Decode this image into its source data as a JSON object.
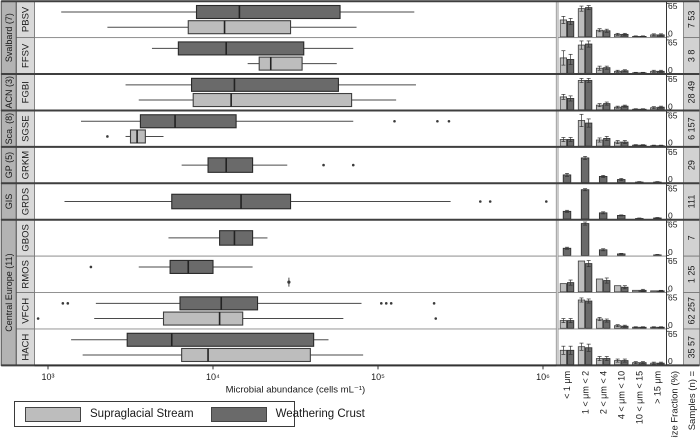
{
  "legend": {
    "items": [
      {
        "label": "Supraglacial Stream",
        "color": "#bdbdbd"
      },
      {
        "label": "Weathering Crust",
        "color": "#6a6a6a"
      }
    ]
  },
  "chart_data": {
    "type": "boxplot+bar",
    "x_axis": {
      "label": "Microbial abundance (cells mL⁻¹)",
      "scale": "log10",
      "ticks": [
        "10³",
        "10⁴",
        "10⁵",
        "10⁶"
      ],
      "log_range": [
        3,
        6
      ]
    },
    "bar_axis": {
      "label": "Size Fraction (%)",
      "ticks": [
        "0",
        "65"
      ],
      "range": [
        0,
        65
      ]
    },
    "samples_header": "Samples (n) =",
    "size_categories": [
      "< 1 μm",
      "1 < μm < 2",
      "2 < μm < 4",
      "4 < μm < 10",
      "10 < μm < 15",
      "> 15 μm"
    ],
    "regions": [
      {
        "label": "Svalbard (7)",
        "start": 0,
        "end": 1
      },
      {
        "label": "ACN (3)",
        "start": 2,
        "end": 2
      },
      {
        "label": "Sca. (8)",
        "start": 3,
        "end": 3
      },
      {
        "label": "GP (5)",
        "start": 4,
        "end": 4
      },
      {
        "label": "GIS",
        "start": 5,
        "end": 5
      },
      {
        "label": "Central Europe (11)",
        "start": 6,
        "end": 9
      }
    ],
    "rows": [
      {
        "site": "PBSV",
        "samples": "7 53",
        "box_stream": [
          3.36,
          3.85,
          4.07,
          4.47,
          4.87
        ],
        "out_stream": [],
        "box_crust": [
          3.08,
          3.9,
          4.16,
          4.77,
          5.22
        ],
        "out_crust": [],
        "bars_stream": [
          33,
          55,
          13,
          5,
          1,
          4
        ],
        "err_stream": [
          7,
          5,
          3,
          2,
          1,
          2
        ],
        "bars_crust": [
          30,
          57,
          12,
          5,
          1,
          4
        ],
        "err_crust": [
          6,
          4,
          3,
          2,
          1,
          2
        ]
      },
      {
        "site": "FFSV",
        "samples": "3 8",
        "box_stream": [
          4.21,
          4.28,
          4.35,
          4.54,
          4.75
        ],
        "out_stream": [],
        "box_crust": [
          3.63,
          3.79,
          4.08,
          4.55,
          4.85
        ],
        "out_crust": [],
        "bars_stream": [
          30,
          55,
          10,
          4,
          1,
          4
        ],
        "err_stream": [
          14,
          8,
          4,
          2,
          1,
          2
        ],
        "bars_crust": [
          27,
          57,
          11,
          5,
          1,
          4
        ],
        "err_crust": [
          10,
          6,
          3,
          2,
          1,
          2
        ]
      },
      {
        "site": "FGBI",
        "samples": "28 49",
        "box_stream": [
          3.55,
          3.88,
          4.11,
          4.84,
          5.11
        ],
        "out_stream": [],
        "box_crust": [
          3.47,
          3.87,
          4.13,
          4.76,
          5.23
        ],
        "out_crust": [],
        "bars_stream": [
          25,
          57,
          9,
          5,
          1,
          4
        ],
        "err_stream": [
          5,
          4,
          3,
          2,
          1,
          2
        ],
        "bars_crust": [
          22,
          57,
          12,
          7,
          1,
          5
        ],
        "err_crust": [
          5,
          4,
          3,
          2,
          1,
          2
        ]
      },
      {
        "site": "SGSE",
        "samples": "6 157",
        "box_stream": [
          3.47,
          3.5,
          3.54,
          3.59,
          3.7
        ],
        "out_stream": [
          3.36
        ],
        "box_crust": [
          3.2,
          3.56,
          3.77,
          4.14,
          4.85
        ],
        "out_crust": [
          5.1,
          5.36,
          5.43
        ],
        "bars_stream": [
          13,
          50,
          12,
          8,
          2,
          1
        ],
        "err_stream": [
          4,
          12,
          4,
          3,
          1,
          1
        ],
        "bars_crust": [
          13,
          45,
          15,
          8,
          2,
          1
        ],
        "err_crust": [
          4,
          8,
          4,
          3,
          1,
          1
        ]
      },
      {
        "site": "GRKM",
        "samples": "29",
        "box_crust": [
          3.81,
          3.97,
          4.08,
          4.24,
          4.45
        ],
        "out_crust": [
          4.67,
          4.85
        ],
        "bars_crust": [
          15,
          48,
          12,
          6,
          1,
          1
        ],
        "err_crust": [
          3,
          3,
          2,
          2,
          1,
          1
        ]
      },
      {
        "site": "GRDS",
        "samples": "111",
        "box_crust": [
          3.1,
          3.75,
          4.17,
          4.47,
          5.44
        ],
        "out_crust": [
          5.62,
          5.68,
          6.02
        ],
        "bars_crust": [
          15,
          57,
          12,
          7,
          1,
          2
        ],
        "err_crust": [
          2,
          2,
          2,
          1,
          1,
          1
        ]
      },
      {
        "site": "GBOS",
        "samples": "7",
        "box_crust": [
          3.73,
          4.04,
          4.13,
          4.24,
          4.33
        ],
        "out_crust": [],
        "bars_crust": [
          14,
          62,
          11,
          3,
          0,
          1
        ],
        "err_crust": [
          2,
          3,
          2,
          1,
          0,
          1
        ]
      },
      {
        "site": "RMOS",
        "samples": "1 25",
        "stream_point": 4.46,
        "box_crust": [
          3.55,
          3.74,
          3.85,
          4.0,
          4.24
        ],
        "out_crust": [
          3.26
        ],
        "bars_stream": [
          16,
          60,
          25,
          12,
          3,
          2
        ],
        "err_stream": [
          0,
          0,
          0,
          0,
          0,
          0
        ],
        "bars_crust": [
          18,
          55,
          22,
          9,
          3,
          2
        ],
        "err_crust": [
          5,
          6,
          5,
          3,
          2,
          1
        ]
      },
      {
        "site": "VFCH",
        "samples": "62 257",
        "box_stream": [
          3.28,
          3.7,
          4.04,
          4.18,
          4.79
        ],
        "out_stream": [
          2.94,
          5.35
        ],
        "box_crust": [
          3.29,
          3.8,
          4.05,
          4.27,
          4.9
        ],
        "out_crust": [
          3.09,
          3.12,
          5.02,
          5.05,
          5.08,
          5.34
        ],
        "bars_stream": [
          15,
          55,
          18,
          5,
          2,
          2
        ],
        "err_stream": [
          4,
          4,
          3,
          2,
          1,
          1
        ],
        "bars_crust": [
          15,
          53,
          15,
          4,
          2,
          2
        ],
        "err_crust": [
          4,
          4,
          3,
          2,
          1,
          1
        ]
      },
      {
        "site": "HACH",
        "samples": "35 57",
        "box_stream": [
          3.21,
          3.81,
          3.97,
          4.59,
          4.91
        ],
        "out_stream": [],
        "box_crust": [
          3.14,
          3.48,
          3.75,
          4.61,
          4.7
        ],
        "out_crust": [],
        "bars_stream": [
          28,
          35,
          12,
          8,
          4,
          3
        ],
        "err_stream": [
          8,
          7,
          4,
          3,
          2,
          2
        ],
        "bars_crust": [
          28,
          33,
          12,
          8,
          4,
          3
        ],
        "err_crust": [
          8,
          7,
          4,
          3,
          2,
          2
        ]
      }
    ]
  }
}
